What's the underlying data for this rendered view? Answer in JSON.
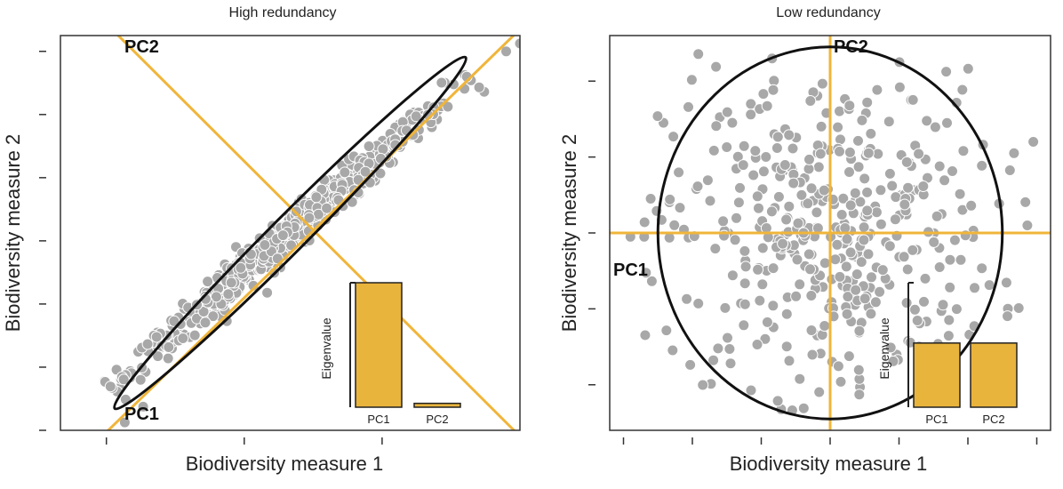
{
  "colors": {
    "axis_line": "#f0b53a",
    "bar_fill": "#e9b43c",
    "point_fill": "#a8a8a8",
    "point_stroke": "#ffffff",
    "ellipse": "#111111",
    "frame": "#333333"
  },
  "chart_data": [
    {
      "type": "scatter",
      "subtitle": "High redundancy",
      "xlabel": "Biodiversity measure 1",
      "ylabel": "Biodiversity measure 2",
      "xlim": [
        0,
        10
      ],
      "ylim": [
        0,
        10
      ],
      "grid": false,
      "x_ticks": [
        1,
        4,
        7
      ],
      "y_ticks": [
        0,
        1.6,
        3.2,
        4.8,
        6.4,
        8,
        9.6
      ],
      "pc_lines": [
        {
          "label": "PC1",
          "from": [
            0.6,
            -0.5
          ],
          "to": [
            10.3,
            10.5
          ]
        },
        {
          "label": "PC2",
          "from": [
            1.0,
            10.3
          ],
          "to": [
            10.3,
            -0.5
          ]
        }
      ],
      "ellipse": {
        "center": [
          5.0,
          5.0
        ],
        "rx": 5.4,
        "ry": 0.45,
        "angle_deg": 45
      },
      "points": {
        "count": 640,
        "distribution": "correlated-band",
        "outliers": [
          [
            1.4,
            0.2
          ],
          [
            1.8,
            0.6
          ],
          [
            10.0,
            9.8
          ],
          [
            10.3,
            9.85
          ],
          [
            9.7,
            9.6
          ]
        ]
      },
      "inset": {
        "ylabel": "Eigenvalue",
        "categories": [
          "PC1",
          "PC2"
        ],
        "values": [
          0.97,
          0.03
        ]
      }
    },
    {
      "type": "scatter",
      "subtitle": "Low redundancy",
      "xlabel": "Biodiversity measure 1",
      "ylabel": "Biodiversity measure 2",
      "xlim": [
        -3.2,
        3.2
      ],
      "ylim": [
        -2.6,
        2.6
      ],
      "grid": false,
      "x_ticks": [
        -3,
        -2,
        -1,
        0,
        1,
        2,
        3
      ],
      "y_ticks": [
        -2,
        -1,
        0,
        1,
        2
      ],
      "pc_lines": [
        {
          "label": "PC1",
          "from": [
            -3.2,
            0
          ],
          "to": [
            3.2,
            0
          ]
        },
        {
          "label": "PC2",
          "from": [
            0,
            2.6
          ],
          "to": [
            0,
            -2.6
          ]
        }
      ],
      "ellipse": {
        "center": [
          0,
          0
        ],
        "rx": 2.5,
        "ry": 2.45,
        "angle_deg": 0
      },
      "points": {
        "count": 430,
        "distribution": "isotropic",
        "outliers": [
          [
            -1.25,
            2.97
          ],
          [
            -0.95,
            2.97
          ],
          [
            1.4,
            2.95
          ],
          [
            2.95,
            1.2
          ],
          [
            -2.7,
            -0.05
          ],
          [
            -2.9,
            -0.05
          ]
        ]
      },
      "inset": {
        "ylabel": "Eigenvalue",
        "categories": [
          "PC1",
          "PC2"
        ],
        "values": [
          0.5,
          0.5
        ]
      }
    }
  ]
}
